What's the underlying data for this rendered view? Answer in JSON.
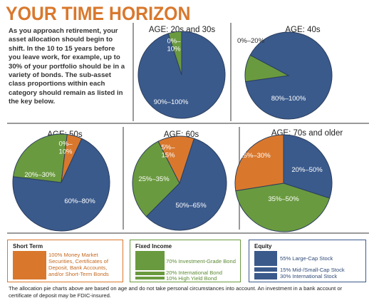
{
  "page": {
    "title": "YOUR TIME HORIZON",
    "intro": "As you approach retirement, your asset allocation should begin to shift. In the 10 to 15 years before you leave work, for example, up to 30% of your portfolio should be in a variety of bonds. The sub-asset class proportions within each category should remain as listed in the key below.",
    "footnote": "The allocation pie charts above are based on age and do not take personal circumstances into account. An investment in a bank account or certificate of deposit may be FDIC-insured."
  },
  "colors": {
    "title": "#d9782d",
    "equity": "#3a5a8c",
    "fixed_income": "#6a9a3f",
    "short_term": "#d9782d",
    "divider": "#9a9a9a"
  },
  "chart_data": [
    {
      "type": "pie",
      "title": "AGE: 20s and 30s",
      "slices": [
        {
          "category": "Equity",
          "value": 95,
          "label": "90%–100%",
          "color": "#3a5a8c"
        },
        {
          "category": "Fixed Income",
          "value": 5,
          "label": "0%–\n10%",
          "color": "#6a9a3f"
        }
      ]
    },
    {
      "type": "pie",
      "title": "AGE: 40s",
      "slices": [
        {
          "category": "Equity",
          "value": 90,
          "label": "80%–100%",
          "color": "#3a5a8c"
        },
        {
          "category": "Fixed Income",
          "value": 10,
          "label": "0%–20%",
          "color": "#6a9a3f"
        }
      ]
    },
    {
      "type": "pie",
      "title": "AGE: 50s",
      "slices": [
        {
          "category": "Equity",
          "value": 70,
          "label": "60%–80%",
          "color": "#3a5a8c"
        },
        {
          "category": "Fixed Income",
          "value": 25,
          "label": "20%–30%",
          "color": "#6a9a3f"
        },
        {
          "category": "Short Term",
          "value": 5,
          "label": "0%–\n10%",
          "color": "#d9782d"
        }
      ]
    },
    {
      "type": "pie",
      "title": "AGE: 60s",
      "slices": [
        {
          "category": "Equity",
          "value": 57.5,
          "label": "50%–65%",
          "color": "#3a5a8c"
        },
        {
          "category": "Fixed Income",
          "value": 30,
          "label": "25%–35%",
          "color": "#6a9a3f"
        },
        {
          "category": "Short Term",
          "value": 12.5,
          "label": "5%–\n15%",
          "color": "#d9782d"
        }
      ]
    },
    {
      "type": "pie",
      "title": "AGE: 70s and older",
      "slices": [
        {
          "category": "Equity",
          "value": 30,
          "label": "20%–50%",
          "color": "#3a5a8c"
        },
        {
          "category": "Fixed Income",
          "value": 42.5,
          "label": "35%–50%",
          "color": "#6a9a3f"
        },
        {
          "category": "Short Term",
          "value": 27.5,
          "label": "15%–30%",
          "color": "#d9782d"
        }
      ]
    }
  ],
  "key": {
    "short_term": {
      "title": "Short Term",
      "text": "100% Money Market Securities, Certificates of Deposit, Bank Accounts, and/or Short-Term Bonds"
    },
    "fixed_income": {
      "title": "Fixed Income",
      "items": [
        "70% Investment-Grade Bond",
        "20% International Bond",
        "10% High Yield Bond"
      ]
    },
    "equity": {
      "title": "Equity",
      "items": [
        "55% Large-Cap Stock",
        "15% Mid-/Small-Cap Stock",
        "30% International Stock"
      ]
    }
  }
}
